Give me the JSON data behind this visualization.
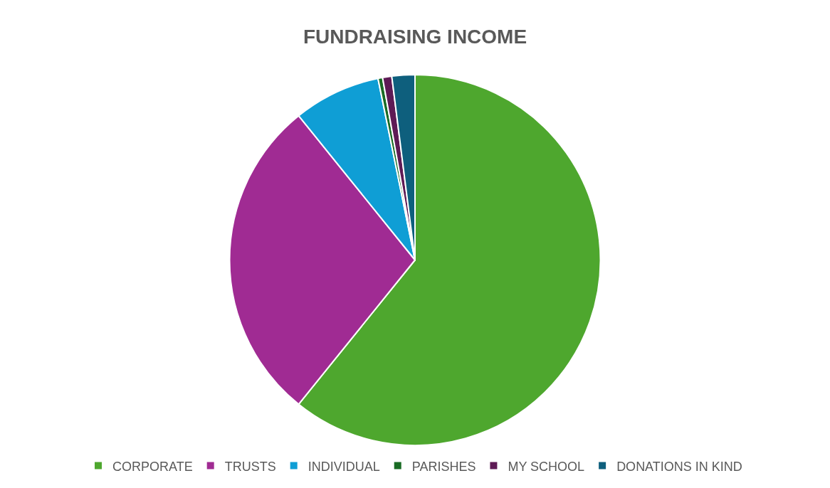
{
  "chart_data": {
    "type": "pie",
    "title": "FUNDRAISING INCOME",
    "categories": [
      "CORPORATE",
      "TRUSTS",
      "INDIVIDUAL",
      "PARISHES",
      "MY SCHOOL",
      "DONATIONS IN KIND"
    ],
    "values": [
      60.8,
      28.4,
      7.6,
      0.4,
      0.8,
      2.0
    ],
    "colors": [
      "#4ea72e",
      "#a02b93",
      "#0f9ed5",
      "#196b24",
      "#5e1a55",
      "#0e5f7d"
    ],
    "legend": "bottom"
  }
}
